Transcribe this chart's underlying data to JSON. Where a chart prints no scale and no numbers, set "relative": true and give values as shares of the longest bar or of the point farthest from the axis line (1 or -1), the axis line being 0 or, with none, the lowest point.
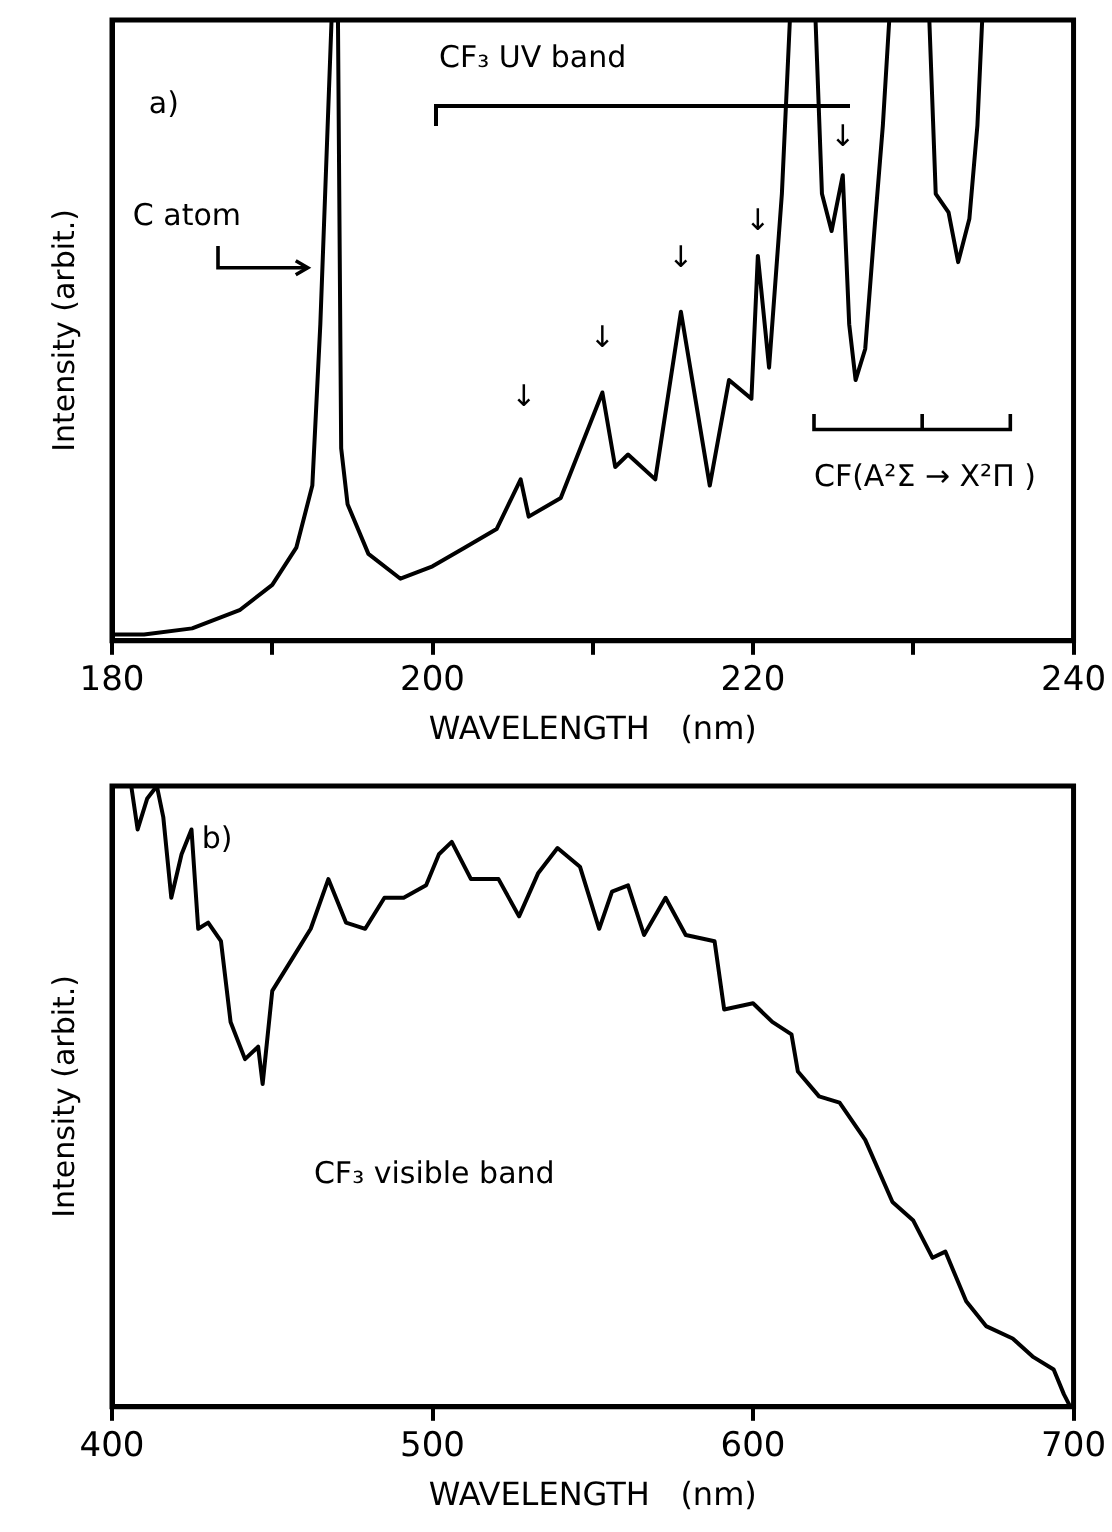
{
  "chart_data": [
    {
      "type": "line",
      "relative": true,
      "color": "#000000",
      "xlabel": "WAVELENGTH   (nm)",
      "ylabel": "Intensity (arbit.)",
      "xlim": [
        180,
        240
      ],
      "xticks": [
        180,
        {
          "value": 190,
          "label": null
        },
        200,
        {
          "value": 210,
          "label": null
        },
        220,
        {
          "value": 230,
          "label": null
        },
        240
      ],
      "annotations": [
        "a)",
        "C atom",
        "CF₃ UV band",
        "CF(A²Σ → X²Π )",
        "↓",
        "↓",
        "↓",
        "↓",
        "↓"
      ],
      "x": [
        180,
        182,
        185,
        188,
        190,
        191.5,
        192.5,
        193,
        193.7,
        194.1,
        194.3,
        194.7,
        196,
        198,
        200,
        202,
        204,
        205.5,
        206,
        208,
        210.6,
        211.4,
        212.2,
        213.9,
        215.5,
        216.4,
        217.3,
        218.5,
        219.9,
        220.3,
        221,
        221.8,
        222.3,
        223.9,
        224.3,
        224.9,
        225.6,
        226,
        226.4,
        227,
        227.6,
        228.1,
        228.5,
        231,
        231.4,
        232.2,
        232.8,
        233.5,
        234,
        234.3
      ],
      "values": [
        0.01,
        0.01,
        0.02,
        0.05,
        0.09,
        0.15,
        0.25,
        0.51,
        1,
        1,
        0.31,
        0.22,
        0.14,
        0.1,
        0.12,
        0.15,
        0.18,
        0.26,
        0.2,
        0.23,
        0.4,
        0.28,
        0.3,
        0.26,
        0.53,
        0.39,
        0.25,
        0.42,
        0.39,
        0.62,
        0.44,
        0.72,
        1,
        1,
        0.72,
        0.66,
        0.75,
        0.51,
        0.42,
        0.47,
        0.67,
        0.83,
        1,
        1,
        0.72,
        0.69,
        0.61,
        0.68,
        0.83,
        1
      ]
    },
    {
      "type": "line",
      "relative": true,
      "color": "#000000",
      "xlabel": "WAVELENGTH   (nm)",
      "ylabel": "Intensity (arbit.)",
      "xlim": [
        400,
        700
      ],
      "xticks": [
        400,
        500,
        600,
        700
      ],
      "annotations": [
        "b)",
        "CF₃ visible band"
      ],
      "x": [
        403,
        406,
        408,
        411,
        414,
        416,
        418.5,
        421.7,
        424.8,
        426.9,
        430,
        434,
        437,
        441.5,
        445.6,
        447,
        450,
        456,
        462,
        467.5,
        473,
        479,
        485,
        491,
        498,
        502,
        506,
        512,
        520.6,
        527,
        533,
        539,
        546,
        552,
        556,
        561,
        566,
        572.7,
        579,
        588,
        591,
        600,
        606,
        612,
        614,
        620.6,
        627,
        635,
        643.5,
        650,
        656,
        660,
        666.5,
        672.7,
        681,
        687.5,
        693.8,
        697,
        699
      ],
      "values": [
        1,
        1,
        0.93,
        0.98,
        1,
        0.95,
        0.82,
        0.89,
        0.93,
        0.77,
        0.78,
        0.75,
        0.62,
        0.56,
        0.58,
        0.52,
        0.67,
        0.72,
        0.77,
        0.85,
        0.78,
        0.77,
        0.82,
        0.82,
        0.84,
        0.89,
        0.91,
        0.85,
        0.85,
        0.79,
        0.86,
        0.9,
        0.87,
        0.77,
        0.83,
        0.84,
        0.76,
        0.82,
        0.76,
        0.75,
        0.64,
        0.65,
        0.62,
        0.6,
        0.54,
        0.5,
        0.49,
        0.43,
        0.33,
        0.3,
        0.24,
        0.25,
        0.17,
        0.13,
        0.11,
        0.08,
        0.06,
        0.02,
        0
      ]
    }
  ]
}
